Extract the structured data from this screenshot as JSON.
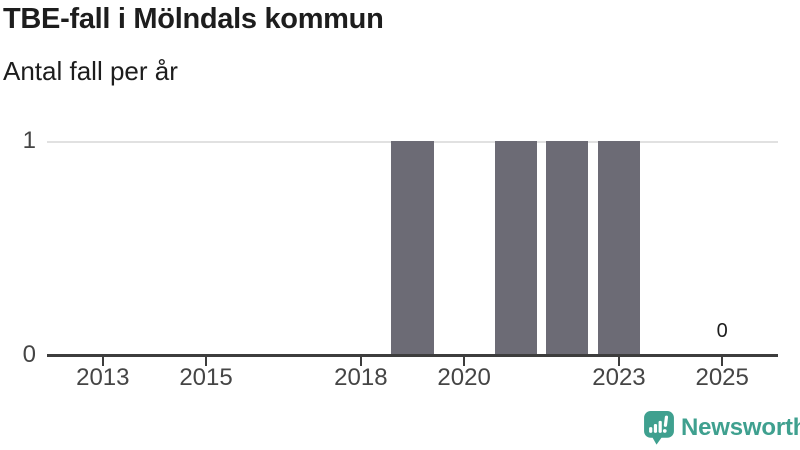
{
  "header": {
    "title": "TBE-fall i Mölndals kommun",
    "subtitle": "Antal fall per år"
  },
  "chart_data": {
    "type": "bar",
    "title": "TBE-fall i Mölndals kommun",
    "subtitle": "Antal fall per år",
    "categories": [
      "2013",
      "2014",
      "2015",
      "2016",
      "2017",
      "2018",
      "2019",
      "2020",
      "2021",
      "2022",
      "2023",
      "2024",
      "2025"
    ],
    "values": [
      0,
      0,
      0,
      0,
      0,
      0,
      1,
      0,
      1,
      1,
      1,
      0,
      0
    ],
    "x_tick_labels": [
      "2013",
      "2015",
      "2018",
      "2020",
      "2023",
      "2025"
    ],
    "y_ticks": [
      0,
      1
    ],
    "ylim": [
      0,
      1
    ],
    "xlabel": "",
    "ylabel": "",
    "grid": "horizontal",
    "legend": "none",
    "bar_color": "#6c6b75",
    "annotation": {
      "category": "2025",
      "label": "0"
    }
  },
  "colors": {
    "bar": "#6c6b75",
    "axis_line": "#3d3d3d",
    "tick_label": "#454545",
    "grid": "#e1e1e1",
    "text": "#1d1d1d",
    "brand_teal": "#3fa08f"
  },
  "footer": {
    "brand": "Newsworthy"
  }
}
